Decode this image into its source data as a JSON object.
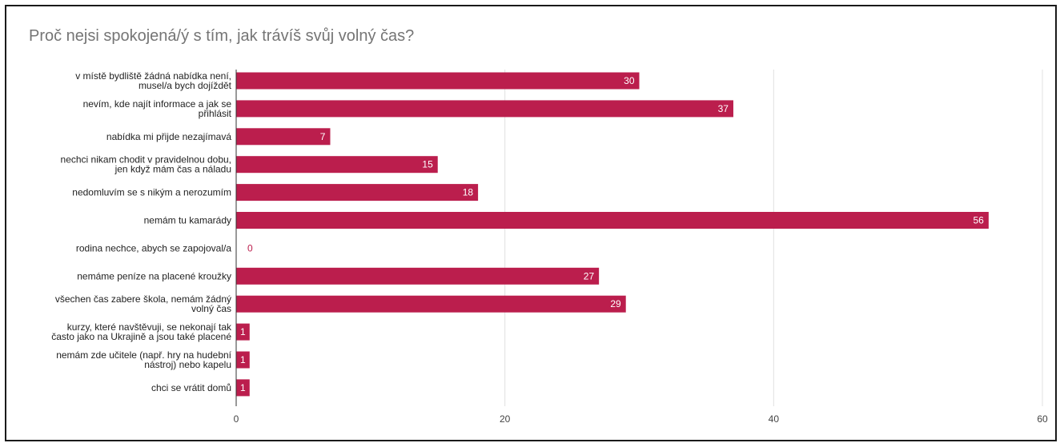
{
  "chart_data": {
    "type": "bar",
    "orientation": "horizontal",
    "title": "Proč nejsi spokojená/ý s tím, jak trávíš svůj volný čas?",
    "categories": [
      [
        "v místě bydliště žádná nabídka není,",
        "musel/a bych dojíždět"
      ],
      [
        "nevím, kde najít informace a jak se",
        "přihlásit"
      ],
      [
        "nabídka mi přijde nezajímavá"
      ],
      [
        "nechci nikam chodit v pravidelnou dobu,",
        "jen když mám čas a náladu"
      ],
      [
        "nedomluvím se s nikým a nerozumím"
      ],
      [
        "nemám tu kamarády"
      ],
      [
        "rodina nechce, abych se zapojoval/a"
      ],
      [
        "nemáme peníze na placené kroužky"
      ],
      [
        "všechen čas zabere škola, nemám žádný",
        "volný čas"
      ],
      [
        "kurzy, které navštěvuji, se nekonají tak",
        "často jako na Ukrajině a jsou také placené"
      ],
      [
        "nemám zde učitele (např. hry na hudební",
        "nástroj) nebo kapelu"
      ],
      [
        "chci se vrátit domů"
      ]
    ],
    "values": [
      30,
      37,
      7,
      15,
      18,
      56,
      0,
      27,
      29,
      1,
      1,
      1
    ],
    "xlim": [
      0,
      60
    ],
    "xticks": [
      0,
      20,
      40,
      60
    ],
    "grid": true,
    "legend": "none",
    "colors": {
      "bar": "#bb1e4d",
      "label_inside": "#ffffff",
      "grid": "#e0e0e0",
      "axis": "#333333"
    }
  }
}
